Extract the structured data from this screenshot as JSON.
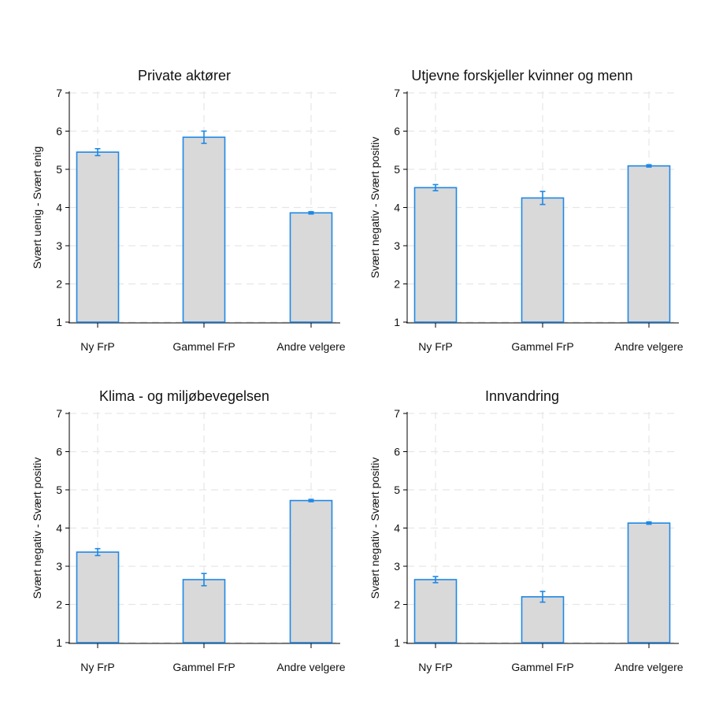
{
  "colors": {
    "bar_fill": "#d9d9d9",
    "bar_stroke": "#1e88e5",
    "error_bar": "#1e88e5",
    "grid": "#e6e6e6",
    "axis": "#000000",
    "background": "#ffffff"
  },
  "chart_data": [
    {
      "type": "bar",
      "title": "Private aktører",
      "ylabel": "Svært uenig - Svært enig",
      "xlabel": "",
      "categories": [
        "Ny FrP",
        "Gammel FrP",
        "Andre velgere"
      ],
      "values": [
        5.45,
        5.84,
        3.86
      ],
      "ci_low": [
        5.36,
        5.68,
        3.83
      ],
      "ci_high": [
        5.54,
        6.0,
        3.89
      ],
      "ylim": [
        1,
        7
      ],
      "yticks": [
        "1",
        "2",
        "3",
        "4",
        "5",
        "6",
        "7"
      ],
      "grid": true,
      "legend": "none"
    },
    {
      "type": "bar",
      "title": "Utjevne forskjeller kvinner og menn",
      "ylabel": "Svært negativ - Svært positiv",
      "xlabel": "",
      "categories": [
        "Ny FrP",
        "Gammel FrP",
        "Andre velgere"
      ],
      "values": [
        4.52,
        4.25,
        5.09
      ],
      "ci_low": [
        4.44,
        4.08,
        5.06
      ],
      "ci_high": [
        4.6,
        4.42,
        5.12
      ],
      "ylim": [
        1,
        7
      ],
      "yticks": [
        "1",
        "2",
        "3",
        "4",
        "5",
        "6",
        "7"
      ],
      "grid": true,
      "legend": "none"
    },
    {
      "type": "bar",
      "title": "Klima - og miljøbevegelsen",
      "ylabel": "Svært negativ - Svært positiv",
      "xlabel": "",
      "categories": [
        "Ny FrP",
        "Gammel FrP",
        "Andre velgere"
      ],
      "values": [
        3.37,
        2.65,
        4.72
      ],
      "ci_low": [
        3.28,
        2.49,
        4.69
      ],
      "ci_high": [
        3.46,
        2.81,
        4.75
      ],
      "ylim": [
        1,
        7
      ],
      "yticks": [
        "1",
        "2",
        "3",
        "4",
        "5",
        "6",
        "7"
      ],
      "grid": true,
      "legend": "none"
    },
    {
      "type": "bar",
      "title": "Innvandring",
      "ylabel": "Svært negativ - Svært positiv",
      "xlabel": "",
      "categories": [
        "Ny FrP",
        "Gammel FrP",
        "Andre velgere"
      ],
      "values": [
        2.65,
        2.2,
        4.13
      ],
      "ci_low": [
        2.57,
        2.06,
        4.1
      ],
      "ci_high": [
        2.73,
        2.34,
        4.16
      ],
      "ylim": [
        1,
        7
      ],
      "yticks": [
        "1",
        "2",
        "3",
        "4",
        "5",
        "6",
        "7"
      ],
      "grid": true,
      "legend": "none"
    }
  ]
}
